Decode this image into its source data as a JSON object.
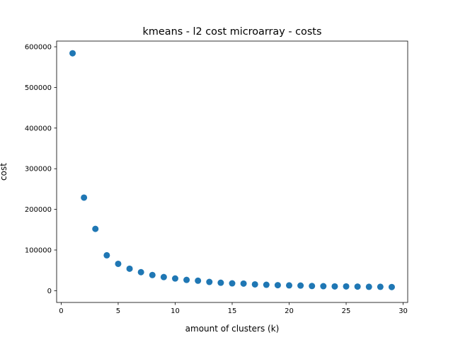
{
  "chart_data": {
    "type": "scatter",
    "title": "kmeans - l2 cost microarray - costs",
    "xlabel": "amount of clusters (k)",
    "ylabel": "cost",
    "xlim": [
      -0.4,
      30.4
    ],
    "ylim": [
      -29000,
      614000
    ],
    "xticks": [
      0,
      5,
      10,
      15,
      20,
      25,
      30
    ],
    "xtick_labels": [
      "0",
      "5",
      "10",
      "15",
      "20",
      "25",
      "30"
    ],
    "yticks": [
      0,
      100000,
      200000,
      300000,
      400000,
      500000,
      600000
    ],
    "ytick_labels": [
      "0",
      "100000",
      "200000",
      "300000",
      "400000",
      "500000",
      "600000"
    ],
    "grid": false,
    "marker_color": "#1f77b4",
    "x": [
      1,
      2,
      3,
      4,
      5,
      6,
      7,
      8,
      9,
      10,
      11,
      12,
      13,
      14,
      15,
      16,
      17,
      18,
      19,
      20,
      21,
      22,
      23,
      24,
      25,
      26,
      27,
      28,
      29
    ],
    "y": [
      584000,
      229000,
      152000,
      87000,
      66000,
      54000,
      45500,
      38500,
      33500,
      30000,
      26500,
      24500,
      21500,
      19500,
      18000,
      17500,
      15500,
      14500,
      13500,
      13000,
      12500,
      11500,
      11000,
      10500,
      10500,
      10000,
      9500,
      9500,
      9000
    ]
  }
}
